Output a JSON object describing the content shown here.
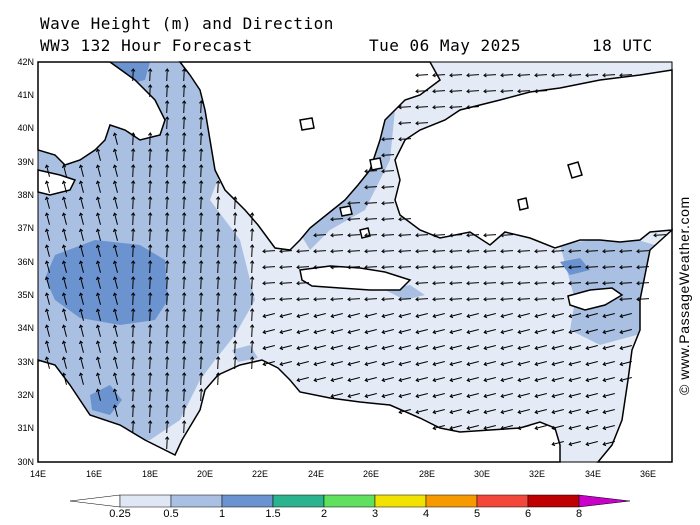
{
  "header": {
    "title": "Wave Height (m) and Direction",
    "model": "WW3 132 Hour Forecast",
    "date": "Tue 06 May 2025",
    "time": "18 UTC"
  },
  "credit": "© www.PassageWeather.com",
  "axes": {
    "lat_labels": [
      "42N",
      "41N",
      "40N",
      "39N",
      "38N",
      "37N",
      "36N",
      "35N",
      "34N",
      "33N",
      "32N",
      "31N",
      "30N"
    ],
    "lon_labels": [
      "14E",
      "16E",
      "18E",
      "20E",
      "22E",
      "24E",
      "26E",
      "28E",
      "30E",
      "32E",
      "34E",
      "36E"
    ]
  },
  "legend": {
    "labels": [
      "0.25",
      "0.5",
      "1",
      "1.5",
      "2",
      "3",
      "4",
      "5",
      "6",
      "8"
    ],
    "colors": [
      "#ffffff",
      "#dfe7f4",
      "#a9c0e2",
      "#6b93cf",
      "#2bb28e",
      "#5fe05f",
      "#f2e200",
      "#f79a00",
      "#f2473a",
      "#be0000",
      "#c800c8"
    ]
  },
  "colors": {
    "sea_lowest": "#e4ebf6",
    "sea_low": "#a9c0e2",
    "sea_mid": "#6b93cf",
    "land": "#ffffff",
    "coast": "#000000"
  }
}
